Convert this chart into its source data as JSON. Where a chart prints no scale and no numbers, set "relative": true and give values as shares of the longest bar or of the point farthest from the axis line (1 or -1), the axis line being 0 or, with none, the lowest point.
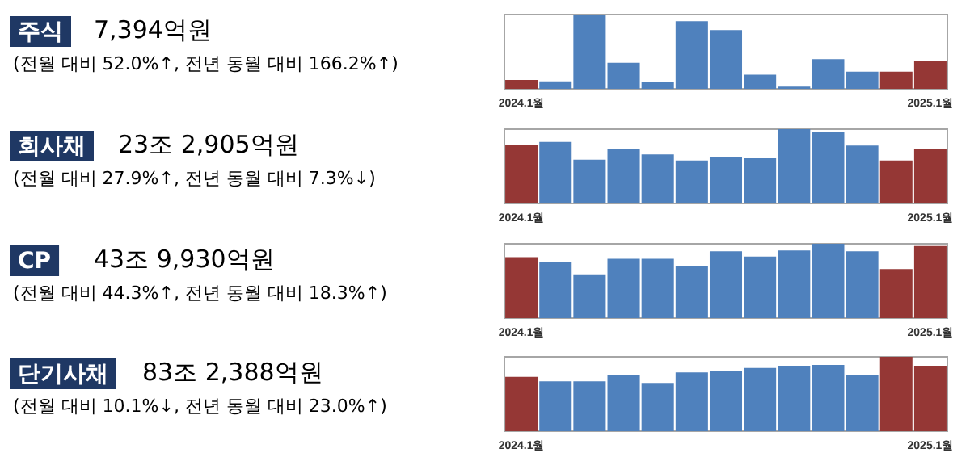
{
  "chart_data": [
    {
      "type": "bar",
      "relative": true,
      "annotations": [
        "주식",
        "7,394억원",
        "(전월 대비 52.0%↑, 전년 동월 대비 166.2%↑)"
      ],
      "categories": [
        "2024.1월",
        null,
        null,
        null,
        null,
        null,
        null,
        null,
        null,
        null,
        null,
        null,
        "2025.1월"
      ],
      "values": [
        0.12,
        0.1,
        1,
        0.35,
        0.09,
        0.91,
        0.79,
        0.19,
        0.03,
        0.4,
        0.23,
        0.23,
        0.38
      ],
      "colors": [
        "#953735",
        "#4f81bd",
        "#4f81bd",
        "#4f81bd",
        "#4f81bd",
        "#4f81bd",
        "#4f81bd",
        "#4f81bd",
        "#4f81bd",
        "#4f81bd",
        "#4f81bd",
        "#953735",
        "#953735"
      ]
    },
    {
      "type": "bar",
      "relative": true,
      "annotations": [
        "회사채",
        "23조 2,905억원",
        "(전월 대비 27.9%↑, 전년 동월 대비 7.3%↓)"
      ],
      "categories": [
        "2024.1월",
        null,
        null,
        null,
        null,
        null,
        null,
        null,
        null,
        null,
        null,
        null,
        "2025.1월"
      ],
      "values": [
        0.79,
        0.83,
        0.59,
        0.74,
        0.66,
        0.58,
        0.63,
        0.61,
        1,
        0.96,
        0.78,
        0.58,
        0.73
      ],
      "colors": [
        "#953735",
        "#4f81bd",
        "#4f81bd",
        "#4f81bd",
        "#4f81bd",
        "#4f81bd",
        "#4f81bd",
        "#4f81bd",
        "#4f81bd",
        "#4f81bd",
        "#4f81bd",
        "#953735",
        "#953735"
      ]
    },
    {
      "type": "bar",
      "relative": true,
      "annotations": [
        "CP",
        "43조 9,930억원",
        "(전월 대비 44.3%↑, 전년 동월 대비 18.3%↑)"
      ],
      "categories": [
        "2024.1월",
        null,
        null,
        null,
        null,
        null,
        null,
        null,
        null,
        null,
        null,
        null,
        "2025.1월"
      ],
      "values": [
        0.82,
        0.76,
        0.59,
        0.8,
        0.8,
        0.7,
        0.9,
        0.83,
        0.91,
        1,
        0.9,
        0.66,
        0.97
      ],
      "colors": [
        "#953735",
        "#4f81bd",
        "#4f81bd",
        "#4f81bd",
        "#4f81bd",
        "#4f81bd",
        "#4f81bd",
        "#4f81bd",
        "#4f81bd",
        "#4f81bd",
        "#4f81bd",
        "#953735",
        "#953735"
      ]
    },
    {
      "type": "bar",
      "relative": true,
      "annotations": [
        "단기사채",
        "83조 2,388억원",
        "(전월 대비 10.1%↓, 전년 동월 대비 23.0%↑)"
      ],
      "categories": [
        "2024.1월",
        null,
        null,
        null,
        null,
        null,
        null,
        null,
        null,
        null,
        null,
        null,
        "2025.1월"
      ],
      "values": [
        0.73,
        0.67,
        0.67,
        0.75,
        0.65,
        0.79,
        0.81,
        0.85,
        0.88,
        0.89,
        0.75,
        1,
        0.88
      ],
      "colors": [
        "#953735",
        "#4f81bd",
        "#4f81bd",
        "#4f81bd",
        "#4f81bd",
        "#4f81bd",
        "#4f81bd",
        "#4f81bd",
        "#4f81bd",
        "#4f81bd",
        "#4f81bd",
        "#953735",
        "#953735"
      ]
    }
  ]
}
